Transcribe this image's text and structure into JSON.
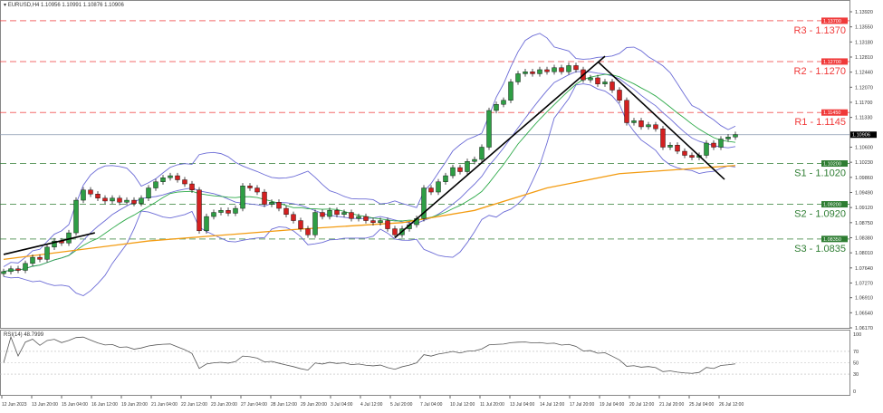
{
  "header": {
    "symbol": "EURUSD,H4",
    "ohlc": "1.10956 1.10991 1.10876 1.10906"
  },
  "rsi_label": "RSI(14) 48.7999",
  "chart_data": {
    "type": "candlestick",
    "symbol": "EURUSD",
    "timeframe": "H4",
    "ylim": [
      1.0617,
      1.1392
    ],
    "price_ticks": [
      "1.13920",
      "1.13550",
      "1.13180",
      "1.12810",
      "1.12440",
      "1.12070",
      "1.11700",
      "1.11330",
      "1.10600",
      "1.10230",
      "1.09860",
      "1.09490",
      "1.09120",
      "1.08750",
      "1.08380",
      "1.08010",
      "1.07640",
      "1.07270",
      "1.06910",
      "1.06540",
      "1.06170"
    ],
    "current_price": "1.10906",
    "closes": [
      1.0755,
      1.0762,
      1.0758,
      1.0775,
      1.079,
      1.0785,
      1.0815,
      1.083,
      1.0825,
      1.085,
      1.093,
      1.0955,
      1.0945,
      1.0935,
      1.0928,
      1.0935,
      1.0925,
      1.093,
      1.0922,
      1.0935,
      1.096,
      1.0975,
      1.0985,
      1.099,
      1.098,
      1.097,
      1.0955,
      1.0855,
      1.089,
      1.09,
      1.0905,
      1.0898,
      1.091,
      1.0965,
      1.096,
      1.095,
      1.092,
      1.0925,
      1.091,
      1.0895,
      1.088,
      1.086,
      1.0845,
      1.09,
      1.089,
      1.0905,
      1.0895,
      1.09,
      1.0885,
      1.089,
      1.088,
      1.0875,
      1.088,
      1.086,
      1.0845,
      1.086,
      1.087,
      1.0885,
      1.096,
      1.095,
      1.0975,
      1.099,
      1.101,
      1.1,
      1.1025,
      1.103,
      1.106,
      1.115,
      1.1165,
      1.1175,
      1.122,
      1.124,
      1.1245,
      1.124,
      1.125,
      1.1245,
      1.1255,
      1.1245,
      1.126,
      1.125,
      1.1225,
      1.123,
      1.1215,
      1.122,
      1.12,
      1.1175,
      1.112,
      1.1125,
      1.111,
      1.1115,
      1.1105,
      1.106,
      1.1065,
      1.105,
      1.104,
      1.1035,
      1.104,
      1.107,
      1.106,
      1.108,
      1.1085,
      1.1091
    ],
    "ma200": [
      [
        0,
        1.0785
      ],
      [
        20,
        1.083
      ],
      [
        40,
        1.0858
      ],
      [
        55,
        1.0875
      ],
      [
        65,
        1.0905
      ],
      [
        75,
        1.096
      ],
      [
        85,
        1.0995
      ],
      [
        101,
        1.1015
      ]
    ],
    "trendlines": [
      [
        [
          0,
          1.0797
        ],
        [
          12.6,
          1.085
        ]
      ],
      [
        [
          54,
          1.0838
        ],
        [
          83,
          1.1283
        ]
      ],
      [
        [
          82,
          1.127
        ],
        [
          99.5,
          1.0981
        ]
      ]
    ],
    "levels": [
      {
        "label": "R3 - 1.1370",
        "value": 1.137,
        "tag": "1.13700",
        "color": "#f03a3a"
      },
      {
        "label": "R2 - 1.1270",
        "value": 1.127,
        "tag": "1.12700",
        "color": "#f03a3a"
      },
      {
        "label": "R1 - 1.1145",
        "value": 1.1145,
        "tag": "1.11450",
        "color": "#f03a3a"
      },
      {
        "label": "S1 - 1.1020",
        "value": 1.102,
        "tag": "1.10200",
        "color": "#2e7d32"
      },
      {
        "label": "S2 - 1.0920",
        "value": 1.092,
        "tag": "1.09200",
        "color": "#2e7d32"
      },
      {
        "label": "S3 - 1.0835",
        "value": 1.0835,
        "tag": "1.08350",
        "color": "#2e7d32"
      }
    ],
    "rsi_ticks": [
      "100",
      "70",
      "50",
      "30",
      "0"
    ],
    "x_labels": [
      "12 Jun 2023",
      "13 Jun 20:00",
      "15 Jun 04:00",
      "16 Jun 12:00",
      "19 Jun 20:00",
      "21 Jun 04:00",
      "22 Jun 12:00",
      "23 Jun 20:00",
      "27 Jun 04:00",
      "28 Jun 12:00",
      "29 Jun 20:00",
      "3 Jul 04:00",
      "4 Jul 12:00",
      "5 Jul 20:00",
      "7 Jul 04:00",
      "10 Jul 12:00",
      "11 Jul 20:00",
      "13 Jul 04:00",
      "14 Jul 12:00",
      "17 Jul 20:00",
      "19 Jul 04:00",
      "20 Jul 12:00",
      "21 Jul 20:00",
      "25 Jul 04:00",
      "26 Jul 12:00"
    ]
  }
}
